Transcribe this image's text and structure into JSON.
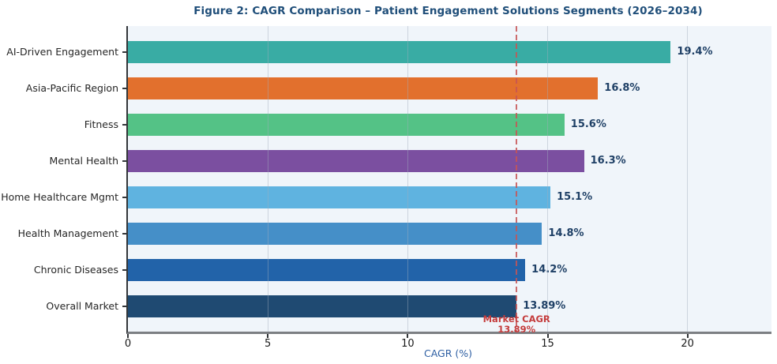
{
  "chart_data": {
    "type": "bar",
    "orientation": "horizontal",
    "title": "Figure 2: CAGR Comparison – Patient Engagement Solutions Segments (2026–2034)",
    "xlabel": "CAGR (%)",
    "categories": [
      "AI-Driven Engagement",
      "Asia-Pacific Region",
      "Fitness",
      "Mental Health",
      "Home Healthcare Mgmt",
      "Health Management",
      "Chronic Diseases",
      "Overall Market"
    ],
    "values": [
      19.4,
      16.8,
      15.6,
      16.3,
      15.1,
      14.8,
      14.2,
      13.89
    ],
    "value_labels": [
      "19.4%",
      "16.8%",
      "15.6%",
      "16.3%",
      "15.1%",
      "14.8%",
      "14.2%",
      "13.89%"
    ],
    "bar_colors": [
      "#39aca4",
      "#e2702d",
      "#54c286",
      "#7b4fa0",
      "#5fb3e0",
      "#458fc8",
      "#2263a9",
      "#1f4a72"
    ],
    "x_ticks": [
      0,
      5,
      10,
      15,
      20
    ],
    "xlim": [
      0,
      23
    ],
    "grid": "vertical-light",
    "legend": "none",
    "reference_line": {
      "value": 13.89,
      "label_line1": "Market CAGR",
      "label_line2": "13.89%",
      "color": "#c75454",
      "style": "dashed"
    }
  },
  "colors": {
    "title": "#1f4e79",
    "value_label": "#1f4066",
    "axis_label": "#2e5fa3",
    "plot_background": "#f0f5fa",
    "figure_background": "#ffffff",
    "reference_red": "#c43c3c"
  }
}
